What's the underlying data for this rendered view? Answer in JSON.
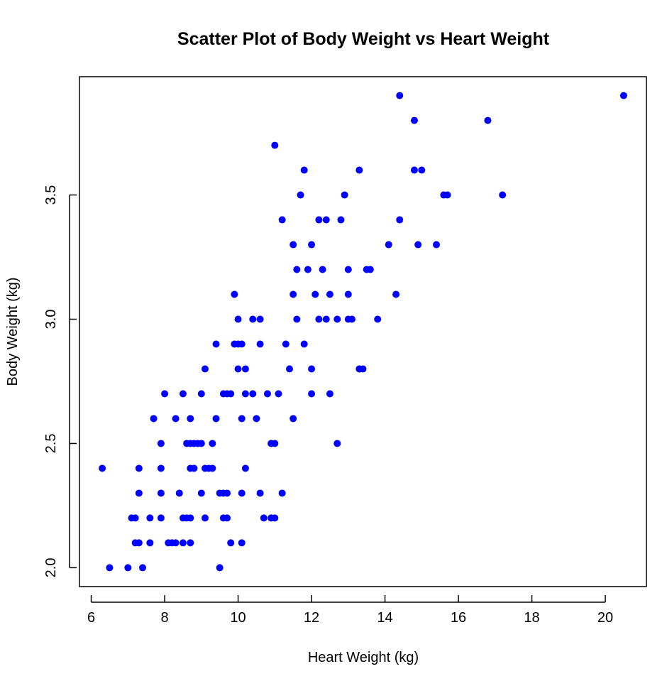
{
  "chart_data": {
    "type": "scatter",
    "title": "Scatter Plot of Body Weight vs Heart Weight",
    "xlabel": "Heart Weight (kg)",
    "ylabel": "Body Weight (kg)",
    "xlim": [
      5.68,
      21.12
    ],
    "ylim": [
      1.924,
      3.976
    ],
    "xticks": [
      6,
      8,
      10,
      12,
      14,
      16,
      18,
      20
    ],
    "yticks": [
      2.0,
      2.5,
      3.0,
      3.5
    ],
    "xtick_labels": [
      "6",
      "8",
      "10",
      "12",
      "14",
      "16",
      "18",
      "20"
    ],
    "ytick_labels": [
      "2.0",
      "2.5",
      "3.0",
      "3.5"
    ],
    "grid": false,
    "point_color": "#0000ff",
    "series": [
      {
        "x": [
          6.3,
          6.5,
          7.0,
          7.1,
          7.2,
          7.2,
          7.3,
          7.3,
          7.3,
          7.4,
          7.6,
          7.6,
          7.7,
          7.9,
          7.9,
          7.9,
          7.9,
          8.0,
          8.1,
          8.2,
          8.3,
          8.3,
          8.4,
          8.5,
          8.5,
          8.5,
          8.6,
          8.6,
          8.7,
          8.7,
          8.7,
          8.7,
          8.7,
          8.8,
          8.8,
          8.9,
          9.0,
          9.0,
          9.0,
          9.1,
          9.1,
          9.1,
          9.2,
          9.3,
          9.3,
          9.4,
          9.4,
          9.5,
          9.5,
          9.6,
          9.6,
          9.6,
          9.7,
          9.7,
          9.7,
          9.8,
          9.8,
          9.9,
          9.9,
          10.0,
          10.0,
          10.0,
          10.1,
          10.1,
          10.1,
          10.1,
          10.2,
          10.2,
          10.2,
          10.4,
          10.4,
          10.5,
          10.6,
          10.6,
          10.6,
          10.7,
          10.8,
          10.9,
          10.9,
          11.0,
          11.0,
          11.0,
          11.1,
          11.2,
          11.2,
          11.3,
          11.4,
          11.5,
          11.5,
          11.5,
          11.6,
          11.6,
          11.7,
          11.8,
          11.8,
          11.9,
          12.0,
          12.0,
          12.0,
          12.1,
          12.2,
          12.2,
          12.3,
          12.4,
          12.4,
          12.5,
          12.5,
          12.7,
          12.7,
          12.8,
          12.9,
          13.0,
          13.0,
          13.0,
          13.1,
          13.3,
          13.3,
          13.4,
          13.5,
          13.6,
          13.8,
          14.1,
          14.3,
          14.4,
          14.4,
          14.8,
          14.8,
          14.9,
          15.0,
          15.4,
          15.6,
          15.7,
          16.8,
          17.2,
          20.5
        ],
        "y": [
          2.4,
          2.0,
          2.0,
          2.2,
          2.2,
          2.1,
          2.4,
          2.3,
          2.1,
          2.0,
          2.2,
          2.1,
          2.6,
          2.5,
          2.4,
          2.3,
          2.2,
          2.7,
          2.1,
          2.1,
          2.6,
          2.1,
          2.3,
          2.7,
          2.2,
          2.1,
          2.5,
          2.2,
          2.6,
          2.5,
          2.4,
          2.2,
          2.1,
          2.5,
          2.4,
          2.5,
          2.7,
          2.5,
          2.3,
          2.8,
          2.4,
          2.2,
          2.4,
          2.5,
          2.4,
          2.9,
          2.6,
          2.3,
          2.0,
          2.7,
          2.3,
          2.2,
          2.3,
          2.2,
          2.7,
          2.7,
          2.1,
          3.1,
          2.9,
          3.0,
          2.9,
          2.8,
          2.9,
          2.6,
          2.3,
          2.1,
          2.8,
          2.7,
          2.4,
          3.0,
          2.7,
          2.6,
          3.0,
          2.9,
          2.3,
          2.2,
          2.7,
          2.5,
          2.2,
          3.7,
          2.5,
          2.2,
          2.7,
          3.4,
          2.3,
          2.9,
          2.8,
          3.3,
          3.1,
          2.6,
          3.2,
          3.0,
          3.5,
          3.6,
          2.9,
          3.2,
          3.3,
          2.8,
          2.7,
          3.1,
          3.4,
          3.0,
          3.2,
          3.4,
          3.0,
          3.1,
          2.7,
          3.0,
          2.5,
          3.4,
          3.5,
          3.2,
          3.1,
          3.0,
          3.0,
          3.6,
          2.8,
          2.8,
          3.2,
          3.2,
          3.0,
          3.3,
          3.1,
          3.9,
          3.4,
          3.8,
          3.6,
          3.3,
          3.6,
          3.3,
          3.5,
          3.5,
          3.8,
          3.5,
          3.9
        ]
      }
    ]
  }
}
